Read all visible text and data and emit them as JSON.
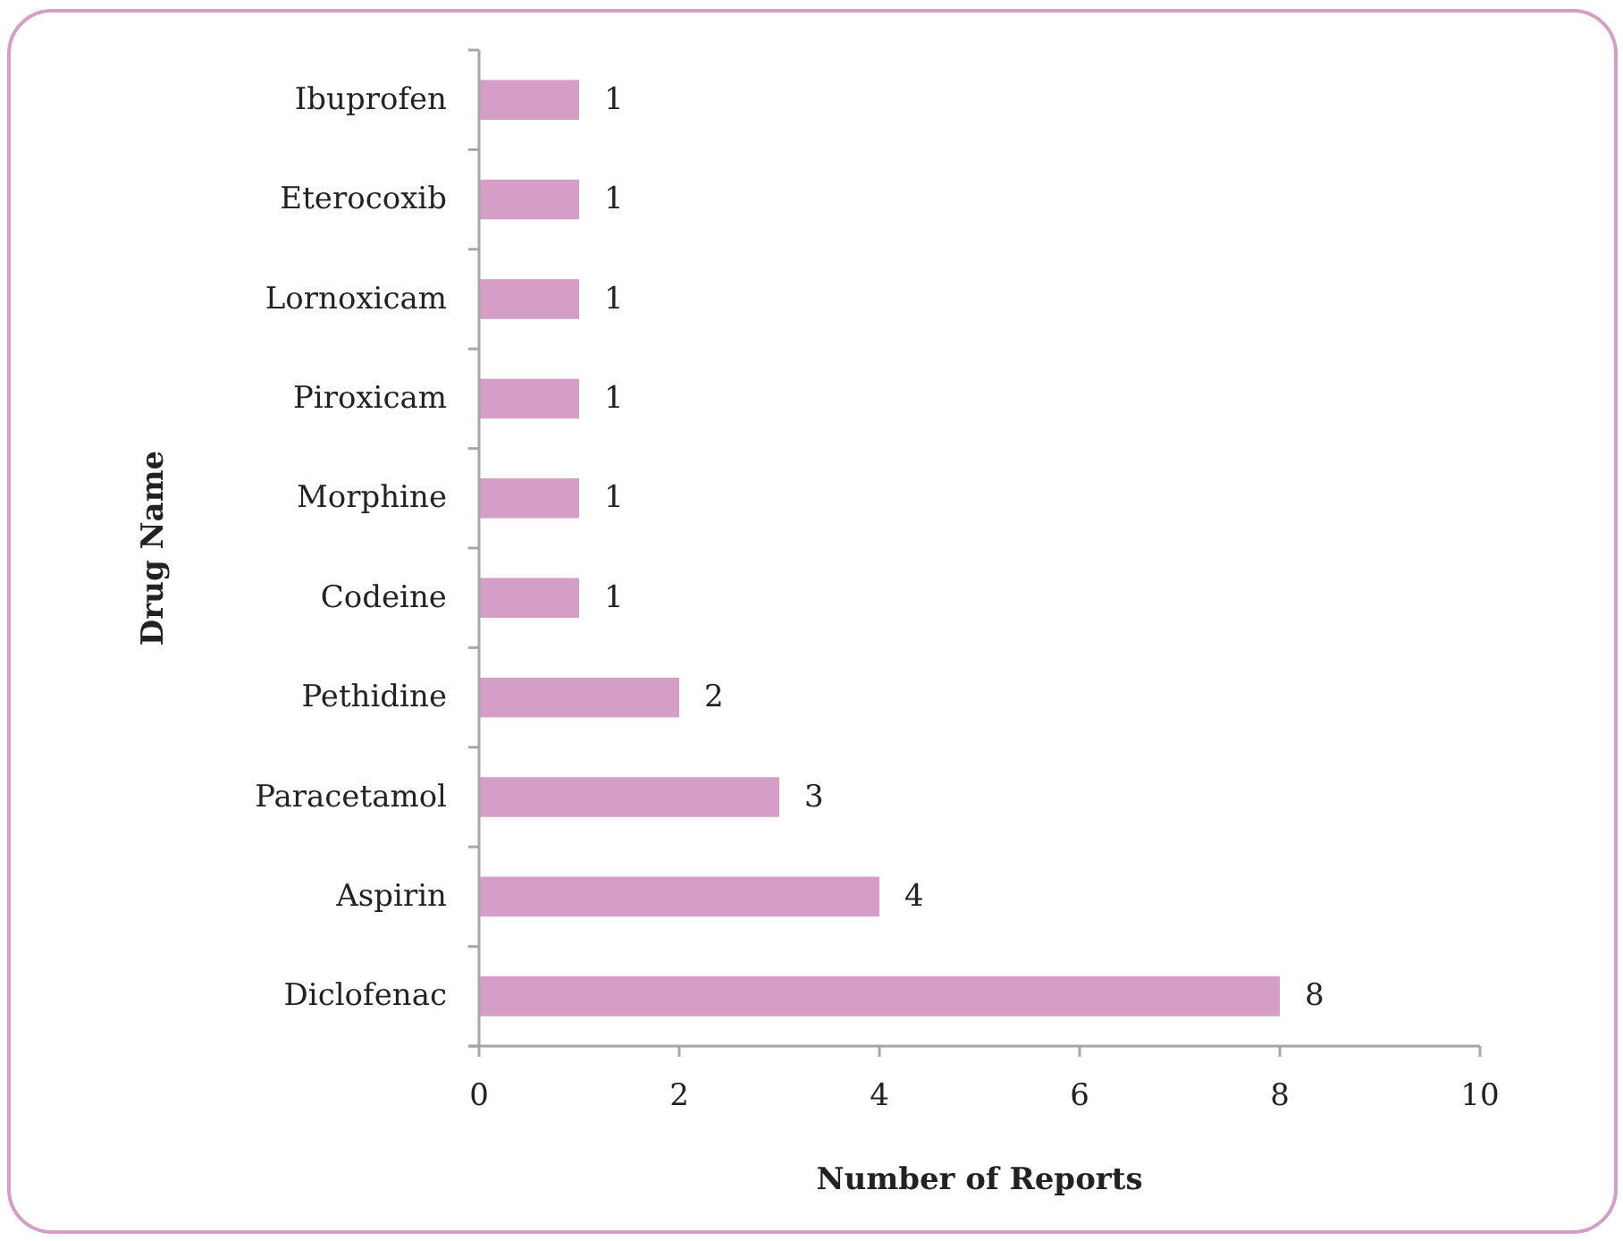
{
  "chart_data": {
    "type": "bar",
    "orientation": "horizontal",
    "categories": [
      "Ibuprofen",
      "Eterocoxib",
      "Lornoxicam",
      "Piroxicam",
      "Morphine",
      "Codeine",
      "Pethidine",
      "Paracetamol",
      "Aspirin",
      "Diclofenac"
    ],
    "values": [
      1,
      1,
      1,
      1,
      1,
      1,
      2,
      3,
      4,
      8
    ],
    "color": "#d59ec7",
    "xlim": [
      0,
      10
    ],
    "xticks": [
      0,
      2,
      4,
      6,
      8,
      10
    ],
    "xlabel": "Number of Reports",
    "ylabel": "Drug Name",
    "data_labels": true
  }
}
